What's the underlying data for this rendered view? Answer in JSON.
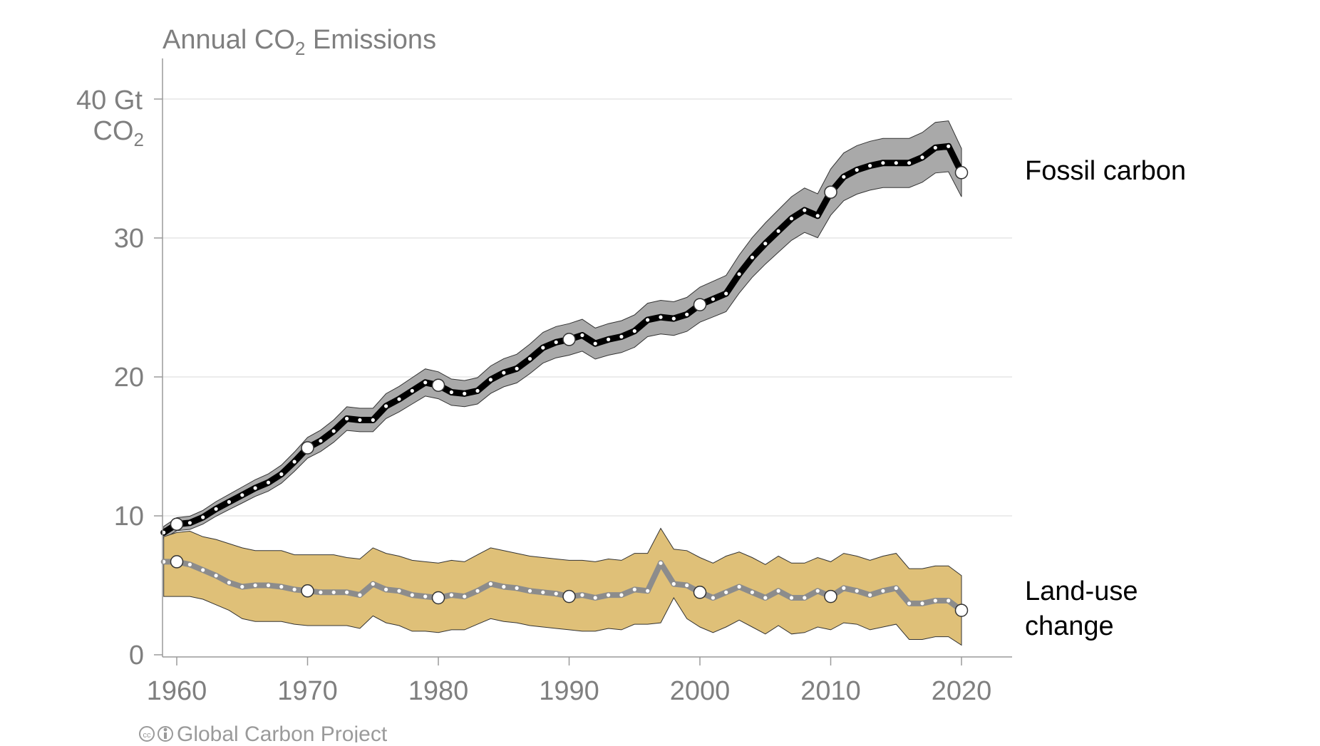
{
  "chart_data": {
    "type": "line",
    "title": "Annual CO",
    "title_subscript": "2",
    "title_suffix": " Emissions",
    "ylabel_line1": "40 Gt",
    "ylabel_line2": "CO",
    "ylabel_line2_subscript": "2",
    "yticks": [
      0,
      10,
      20,
      30,
      40
    ],
    "ytick_labels": [
      "0",
      "10",
      "20",
      "30",
      ""
    ],
    "xticks": [
      1960,
      1970,
      1980,
      1990,
      2000,
      2010,
      2020
    ],
    "xtick_labels": [
      "1960",
      "1970",
      "1980",
      "1990",
      "2000",
      "2010",
      "2020"
    ],
    "xlim": [
      1959,
      2024
    ],
    "ylim": [
      0,
      40
    ],
    "grid": true,
    "x": [
      1959,
      1960,
      1961,
      1962,
      1963,
      1964,
      1965,
      1966,
      1967,
      1968,
      1969,
      1970,
      1971,
      1972,
      1973,
      1974,
      1975,
      1976,
      1977,
      1978,
      1979,
      1980,
      1981,
      1982,
      1983,
      1984,
      1985,
      1986,
      1987,
      1988,
      1989,
      1990,
      1991,
      1992,
      1993,
      1994,
      1995,
      1996,
      1997,
      1998,
      1999,
      2000,
      2001,
      2002,
      2003,
      2004,
      2005,
      2006,
      2007,
      2008,
      2009,
      2010,
      2011,
      2012,
      2013,
      2014,
      2015,
      2016,
      2017,
      2018,
      2019,
      2020
    ],
    "series": [
      {
        "name": "Fossil carbon",
        "label": "Fossil carbon",
        "color": "#000000",
        "band_color": "#a9a9a9",
        "uncertainty": 0.05,
        "values": [
          8.8,
          9.4,
          9.5,
          9.9,
          10.5,
          11.0,
          11.5,
          12.0,
          12.4,
          13.0,
          13.9,
          14.9,
          15.4,
          16.1,
          17.0,
          16.9,
          16.9,
          17.9,
          18.4,
          19.0,
          19.6,
          19.4,
          18.9,
          18.8,
          19.0,
          19.8,
          20.3,
          20.6,
          21.3,
          22.1,
          22.5,
          22.7,
          23.0,
          22.4,
          22.7,
          22.9,
          23.3,
          24.1,
          24.3,
          24.2,
          24.5,
          25.2,
          25.6,
          26.0,
          27.4,
          28.6,
          29.6,
          30.5,
          31.4,
          32.0,
          31.6,
          33.3,
          34.4,
          34.9,
          35.2,
          35.4,
          35.4,
          35.4,
          35.8,
          36.5,
          36.6,
          34.7
        ]
      },
      {
        "name": "Land-use change",
        "label_line1": "Land-use",
        "label_line2": "change",
        "color": "#8c8c8c",
        "band_color": "#dfc078",
        "values": [
          6.7,
          6.7,
          6.5,
          6.1,
          5.7,
          5.2,
          4.9,
          5.0,
          5.0,
          4.9,
          4.7,
          4.6,
          4.5,
          4.5,
          4.5,
          4.3,
          5.1,
          4.7,
          4.6,
          4.3,
          4.2,
          4.1,
          4.3,
          4.2,
          4.6,
          5.1,
          4.9,
          4.8,
          4.6,
          4.5,
          4.4,
          4.2,
          4.3,
          4.1,
          4.3,
          4.3,
          4.7,
          4.6,
          6.6,
          5.1,
          5.0,
          4.5,
          4.1,
          4.5,
          4.9,
          4.5,
          4.1,
          4.6,
          4.1,
          4.1,
          4.6,
          4.2,
          4.8,
          4.6,
          4.3,
          4.6,
          4.8,
          3.7,
          3.7,
          3.9,
          3.9,
          3.2
        ],
        "lower": [
          4.2,
          4.2,
          4.2,
          4.0,
          3.6,
          3.2,
          2.6,
          2.4,
          2.4,
          2.4,
          2.2,
          2.1,
          2.1,
          2.1,
          2.1,
          1.9,
          2.8,
          2.3,
          2.1,
          1.7,
          1.7,
          1.6,
          1.8,
          1.8,
          2.2,
          2.6,
          2.4,
          2.3,
          2.1,
          2.0,
          1.9,
          1.8,
          1.7,
          1.7,
          1.9,
          1.8,
          2.2,
          2.2,
          2.3,
          4.1,
          2.6,
          2.0,
          1.6,
          2.0,
          2.5,
          2.0,
          1.5,
          2.1,
          1.5,
          1.6,
          2.0,
          1.8,
          2.3,
          2.2,
          1.8,
          2.0,
          2.2,
          1.1,
          1.1,
          1.3,
          1.3,
          0.7
        ],
        "upper": [
          8.5,
          8.8,
          8.9,
          8.5,
          8.3,
          8.0,
          7.7,
          7.5,
          7.5,
          7.5,
          7.2,
          7.2,
          7.2,
          7.2,
          7.0,
          6.9,
          7.7,
          7.3,
          7.1,
          6.8,
          6.7,
          6.6,
          6.8,
          6.7,
          7.2,
          7.7,
          7.5,
          7.3,
          7.1,
          7.0,
          6.9,
          6.8,
          6.8,
          6.7,
          6.9,
          6.8,
          7.3,
          7.3,
          9.1,
          7.6,
          7.5,
          7.0,
          6.6,
          7.1,
          7.4,
          7.0,
          6.5,
          7.1,
          6.6,
          6.6,
          7.0,
          6.7,
          7.3,
          7.1,
          6.8,
          7.1,
          7.3,
          6.2,
          6.2,
          6.4,
          6.4,
          5.7
        ]
      }
    ],
    "highlight_years": [
      1960,
      1970,
      1980,
      1990,
      2000,
      2010,
      2020
    ]
  },
  "credit": {
    "cc_icon": "cc-icon",
    "attribution_icon": "attribution-icon",
    "text": "Global Carbon Project"
  }
}
